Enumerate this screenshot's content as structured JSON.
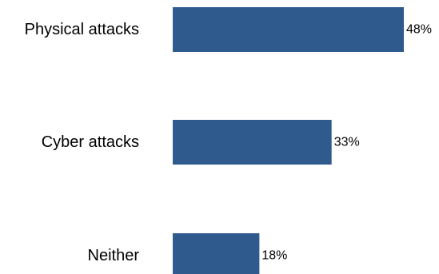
{
  "chart_data": {
    "type": "bar",
    "orientation": "horizontal",
    "categories": [
      "Physical attacks",
      "Cyber attacks",
      "Neither"
    ],
    "values": [
      48,
      33,
      18
    ],
    "value_labels": [
      "48%",
      "33%",
      "18%"
    ],
    "unit": "%",
    "title": "",
    "xlabel": "",
    "ylabel": "",
    "xlim": [
      0,
      48
    ],
    "grid": false,
    "legend": "none",
    "colors": {
      "bar": "#2E5A8E",
      "text": "#000000"
    }
  }
}
